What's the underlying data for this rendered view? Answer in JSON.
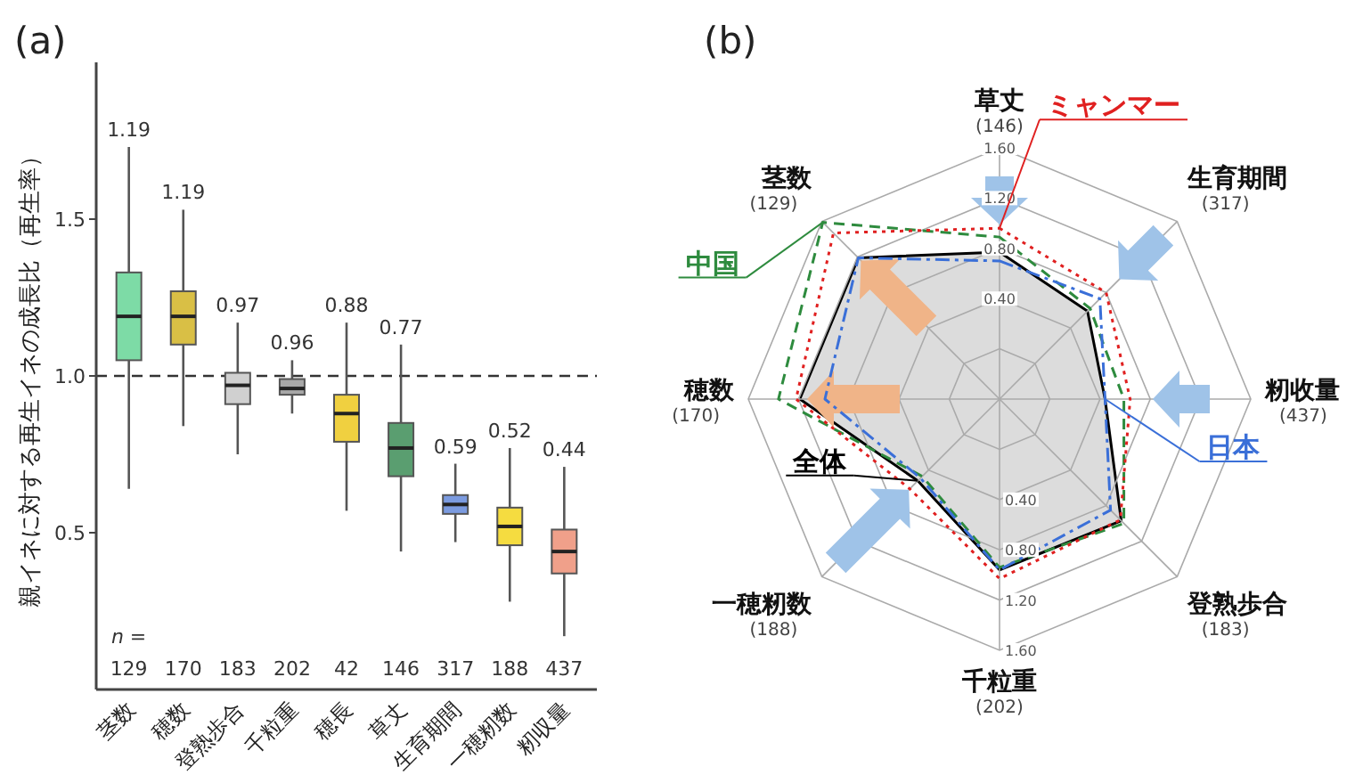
{
  "chart_data": [
    {
      "type": "box",
      "title": "(a)",
      "ylabel": "親イネに対する再生イネの成長比（再生率）",
      "categories": [
        "茎数",
        "穂数",
        "登熟歩合",
        "千粒重",
        "穂長",
        "草丈",
        "生育期間",
        "一穂籾数",
        "籾収量"
      ],
      "boxes": [
        {
          "low": 0.64,
          "q1": 1.05,
          "median": 1.19,
          "q3": 1.33,
          "high": 1.73
        },
        {
          "low": 0.84,
          "q1": 1.1,
          "median": 1.19,
          "q3": 1.27,
          "high": 1.53
        },
        {
          "low": 0.75,
          "q1": 0.91,
          "median": 0.97,
          "q3": 1.01,
          "high": 1.17
        },
        {
          "low": 0.88,
          "q1": 0.94,
          "median": 0.96,
          "q3": 0.99,
          "high": 1.05
        },
        {
          "low": 0.57,
          "q1": 0.79,
          "median": 0.88,
          "q3": 0.94,
          "high": 1.17
        },
        {
          "low": 0.44,
          "q1": 0.68,
          "median": 0.77,
          "q3": 0.85,
          "high": 1.1
        },
        {
          "low": 0.47,
          "q1": 0.56,
          "median": 0.59,
          "q3": 0.62,
          "high": 0.72
        },
        {
          "low": 0.28,
          "q1": 0.46,
          "median": 0.52,
          "q3": 0.58,
          "high": 0.77
        },
        {
          "low": 0.17,
          "q1": 0.37,
          "median": 0.44,
          "q3": 0.51,
          "high": 0.71
        }
      ],
      "colors": [
        "#7ddba6",
        "#d9bf45",
        "#d0d0d0",
        "#a8a8a8",
        "#f0d040",
        "#5a9e70",
        "#7b9be0",
        "#f5dc40",
        "#f0a08a"
      ],
      "value_labels": [
        "1.19",
        "1.19",
        "0.97",
        "0.96",
        "0.88",
        "0.77",
        "0.59",
        "0.52",
        "0.44"
      ],
      "annotations": [
        "n =",
        "129",
        "170",
        "183",
        "202",
        "42",
        "146",
        "317",
        "188",
        "437"
      ],
      "ylim": [
        0,
        2
      ],
      "yticks": [
        0.5,
        {
          "value": 1,
          "label": "1.0"
        },
        1.5
      ],
      "ref_lines": [
        {
          "axis": "y",
          "value": 1,
          "line_style": "dashed"
        }
      ]
    },
    {
      "type": "radar",
      "title": "(b)",
      "categories": [
        "草丈\n(146)",
        "生育期間\n(317)",
        "籾收量\n(437)",
        "登熟歩合\n(183)",
        "千粒重\n(202)",
        "一穂籾数\n(188)",
        "穂数\n(170)",
        "茎数\n(129)"
      ],
      "ylim": [
        -0.4,
        1.6
      ],
      "legend": "left",
      "yticks": [
        {
          "value": 0.4,
          "label": "0.40"
        },
        {
          "value": 0.8,
          "label": "0.80"
        },
        {
          "value": 1.2,
          "label": "1.20"
        },
        {
          "value": 1.6,
          "label": "1.60"
        }
      ],
      "series": [
        {
          "name": "全体",
          "type": "area",
          "color": "#000000",
          "line_style": "solid",
          "values": [
            0.77,
            0.59,
            0.44,
            0.97,
            0.96,
            0.52,
            1.19,
            1.19
          ]
        },
        {
          "name": "中国",
          "color": "#2e8b3e",
          "line_style": "dashed",
          "values": [
            0.89,
            0.62,
            0.59,
            1.0,
            0.94,
            0.47,
            1.36,
            1.59
          ]
        },
        {
          "name": "ミャンマー",
          "color": "#e02020",
          "line_style": "dotted",
          "values": [
            0.96,
            0.8,
            0.64,
            0.96,
            1.03,
            0.61,
            1.22,
            1.47
          ]
        },
        {
          "name": "日本",
          "color": "#3a6fd8",
          "line_style": "dashdot",
          "values": [
            0.7,
            0.73,
            0.44,
            0.85,
            0.96,
            0.49,
            0.99,
            1.19
          ]
        }
      ]
    }
  ]
}
